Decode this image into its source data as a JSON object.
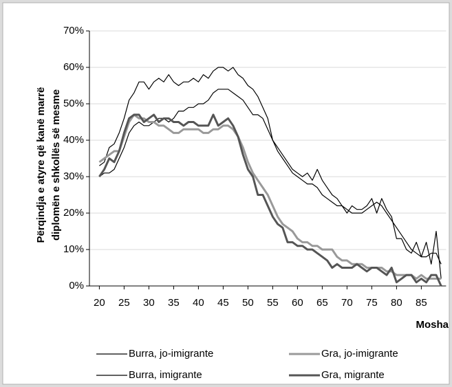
{
  "chart_data": {
    "type": "line",
    "ylabel": [
      "Përqindja e atyre që kanë marrë",
      "diplomën e shkollës së mesme"
    ],
    "xlabel": "Mosha",
    "x": [
      20,
      21,
      22,
      23,
      24,
      25,
      26,
      27,
      28,
      29,
      30,
      31,
      32,
      33,
      34,
      35,
      36,
      37,
      38,
      39,
      40,
      41,
      42,
      43,
      44,
      45,
      46,
      47,
      48,
      49,
      50,
      51,
      52,
      53,
      54,
      55,
      56,
      57,
      58,
      59,
      60,
      61,
      62,
      63,
      64,
      65,
      66,
      67,
      68,
      69,
      70,
      71,
      72,
      73,
      74,
      75,
      76,
      77,
      78,
      79,
      80,
      81,
      82,
      83,
      84,
      85,
      86,
      87,
      88,
      89
    ],
    "xlim": [
      18,
      90
    ],
    "xticks": [
      20,
      25,
      30,
      35,
      40,
      45,
      50,
      55,
      60,
      65,
      70,
      75,
      80,
      85
    ],
    "ylim": [
      0,
      70
    ],
    "yticks": [
      {
        "value": 0,
        "label": "0%"
      },
      {
        "value": 10,
        "label": "10%"
      },
      {
        "value": 20,
        "label": "20%"
      },
      {
        "value": 30,
        "label": "30%"
      },
      {
        "value": 40,
        "label": "40%"
      },
      {
        "value": 50,
        "label": "50%"
      },
      {
        "value": 60,
        "label": "60%"
      },
      {
        "value": 70,
        "label": "70%"
      }
    ],
    "grid": true,
    "series": [
      {
        "name": "Burra, jo-imigrante",
        "color": "#000000",
        "linewidth": 1.2,
        "values": [
          30,
          31,
          31,
          32,
          35,
          38,
          42,
          44,
          45,
          44,
          44,
          45,
          46,
          46,
          45,
          46,
          48,
          48,
          49,
          49,
          50,
          50,
          51,
          53,
          54,
          54,
          54,
          53,
          52,
          51,
          49,
          47,
          47,
          46,
          43,
          40,
          37,
          35,
          33,
          31,
          30,
          29,
          28,
          28,
          27,
          25,
          24,
          23,
          22,
          22,
          21,
          20,
          20,
          20,
          21,
          22,
          23,
          22,
          20,
          18,
          16,
          14,
          12,
          10,
          9,
          8,
          8,
          9,
          9,
          6
        ]
      },
      {
        "name": "Burra, imigrante",
        "color": "#000000",
        "linewidth": 1.2,
        "values": [
          33,
          34,
          38,
          39,
          42,
          46,
          51,
          53,
          56,
          56,
          54,
          56,
          57,
          56,
          58,
          56,
          55,
          56,
          56,
          57,
          56,
          58,
          57,
          59,
          60,
          60,
          59,
          60,
          58,
          57,
          55,
          54,
          52,
          49,
          46,
          40,
          38,
          36,
          34,
          32,
          31,
          30,
          31,
          29,
          32,
          29,
          27,
          25,
          24,
          22,
          20,
          22,
          21,
          21,
          22,
          24,
          20,
          24,
          21,
          19,
          13,
          13,
          10,
          9,
          12,
          8,
          12,
          6,
          15,
          2
        ]
      },
      {
        "name": "Gra, jo-imigrante",
        "color": "#999999",
        "linewidth": 3,
        "values": [
          34,
          35,
          36,
          37,
          37,
          41,
          45,
          47,
          46,
          46,
          45,
          45,
          44,
          44,
          43,
          42,
          42,
          43,
          43,
          43,
          43,
          42,
          42,
          43,
          43,
          44,
          44,
          43,
          41,
          38,
          34,
          31,
          29,
          27,
          25,
          22,
          19,
          17,
          16,
          15,
          13,
          12,
          12,
          11,
          11,
          10,
          10,
          10,
          8,
          7,
          7,
          6,
          6,
          6,
          5,
          5,
          5,
          5,
          4,
          4,
          3,
          3,
          3,
          3,
          2,
          3,
          2,
          2,
          2,
          2
        ]
      },
      {
        "name": "Gra, migrante",
        "color": "#555555",
        "linewidth": 3,
        "values": [
          30,
          32,
          35,
          34,
          37,
          42,
          46,
          47,
          47,
          45,
          46,
          47,
          45,
          46,
          46,
          45,
          45,
          44,
          45,
          45,
          44,
          44,
          44,
          47,
          44,
          45,
          46,
          44,
          41,
          36,
          32,
          30,
          25,
          25,
          22,
          19,
          17,
          16,
          12,
          12,
          11,
          11,
          10,
          10,
          9,
          8,
          7,
          5,
          6,
          5,
          5,
          5,
          6,
          5,
          4,
          5,
          5,
          4,
          3,
          5,
          1,
          2,
          3,
          3,
          1,
          2,
          1,
          3,
          3,
          0
        ]
      }
    ]
  }
}
